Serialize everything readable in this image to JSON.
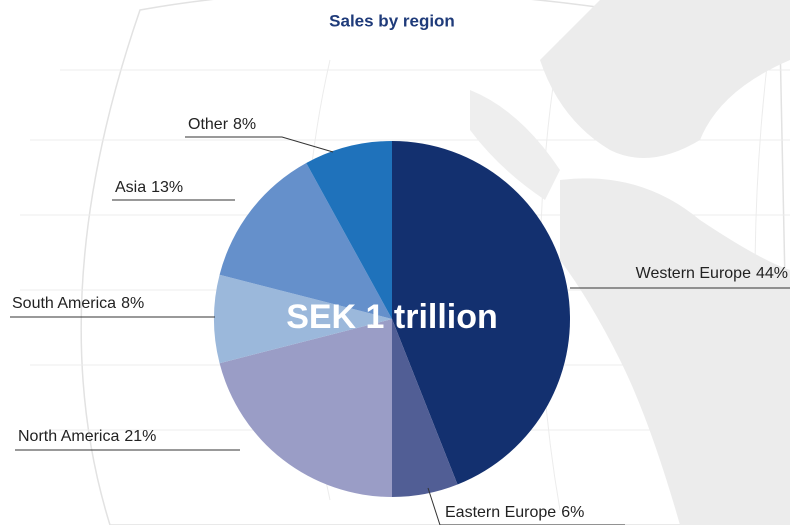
{
  "chart_data": {
    "type": "pie",
    "title": "Sales by region",
    "center_label": "SEK 1 trillion",
    "categories": [
      "Western Europe",
      "Eastern Europe",
      "North America",
      "South America",
      "Asia",
      "Other"
    ],
    "values": [
      44,
      6,
      21,
      8,
      13,
      8
    ],
    "value_labels": [
      "44%",
      "6%",
      "21%",
      "8%",
      "13%",
      "8%"
    ],
    "colors": [
      "#13306f",
      "#515e95",
      "#9a9dc6",
      "#9bb8db",
      "#6590cb",
      "#1f72bb"
    ]
  }
}
